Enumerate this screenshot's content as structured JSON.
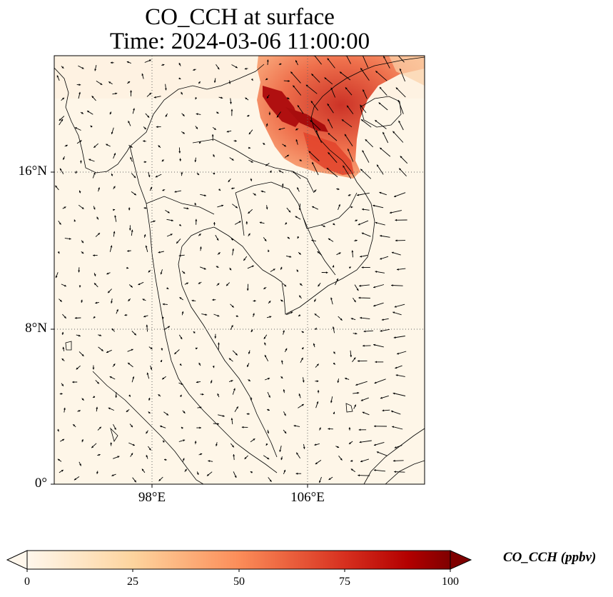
{
  "title": {
    "line1": "CO_CCH at surface",
    "line2": "Time: 2024-03-06 11:00:00"
  },
  "map": {
    "lat_labels": [
      "16°N",
      "8°N",
      "0°"
    ],
    "lon_labels": [
      "98°E",
      "106°E"
    ],
    "background_color": "#fef6e8",
    "coastline_color": "#000000",
    "gridline_style": "dotted"
  },
  "colorbar": {
    "label": "CO_CCH (ppbv)",
    "ticks": [
      "0",
      "25",
      "50",
      "75",
      "100"
    ],
    "min": 0,
    "max": 100,
    "colormap": "OrRd",
    "extend": "both"
  }
}
